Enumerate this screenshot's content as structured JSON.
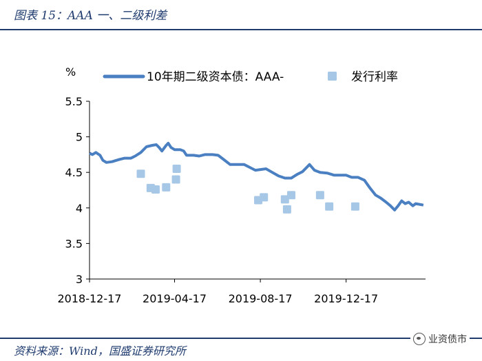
{
  "header": {
    "title": "图表 15：AAA 一、二级利差"
  },
  "footer": {
    "source": "资料来源：Wind，国盛证券研究所"
  },
  "watermark": {
    "text": "业资债市",
    "icon": "wechat-icon"
  },
  "colors": {
    "line": "#4a7fc1",
    "marker": "#a7c7e7",
    "rule": "#1f3b6e"
  },
  "chart_data": {
    "type": "line",
    "unit_label": "%",
    "ylim": [
      3,
      5.5
    ],
    "yticks": [
      "3",
      "3.5",
      "4",
      "4.5",
      "5",
      "5.5"
    ],
    "xticks": [
      "2018-12-17",
      "2019-04-17",
      "2019-08-17",
      "2019-12-17"
    ],
    "x_range": [
      "2018-12-17",
      "2020-04-08"
    ],
    "legend_position": "top",
    "grid": false,
    "series": [
      {
        "name": "10年期二级资本债：AAA-",
        "kind": "line",
        "points": [
          [
            "2018-12-17",
            4.77
          ],
          [
            "2018-12-21",
            4.75
          ],
          [
            "2018-12-26",
            4.78
          ],
          [
            "2019-01-01",
            4.74
          ],
          [
            "2019-01-05",
            4.67
          ],
          [
            "2019-01-10",
            4.64
          ],
          [
            "2019-01-18",
            4.65
          ],
          [
            "2019-01-28",
            4.68
          ],
          [
            "2019-02-05",
            4.7
          ],
          [
            "2019-02-14",
            4.7
          ],
          [
            "2019-02-20",
            4.73
          ],
          [
            "2019-02-28",
            4.78
          ],
          [
            "2019-03-08",
            4.86
          ],
          [
            "2019-03-16",
            4.88
          ],
          [
            "2019-03-22",
            4.89
          ],
          [
            "2019-03-26",
            4.85
          ],
          [
            "2019-03-30",
            4.8
          ],
          [
            "2019-04-05",
            4.88
          ],
          [
            "2019-04-08",
            4.91
          ],
          [
            "2019-04-12",
            4.85
          ],
          [
            "2019-04-17",
            4.82
          ],
          [
            "2019-04-25",
            4.82
          ],
          [
            "2019-04-30",
            4.8
          ],
          [
            "2019-05-04",
            4.74
          ],
          [
            "2019-05-14",
            4.74
          ],
          [
            "2019-05-22",
            4.73
          ],
          [
            "2019-05-30",
            4.75
          ],
          [
            "2019-06-10",
            4.75
          ],
          [
            "2019-06-18",
            4.74
          ],
          [
            "2019-06-26",
            4.68
          ],
          [
            "2019-07-05",
            4.61
          ],
          [
            "2019-07-15",
            4.61
          ],
          [
            "2019-07-25",
            4.61
          ],
          [
            "2019-08-02",
            4.57
          ],
          [
            "2019-08-10",
            4.53
          ],
          [
            "2019-08-17",
            4.54
          ],
          [
            "2019-08-25",
            4.55
          ],
          [
            "2019-09-03",
            4.5
          ],
          [
            "2019-09-12",
            4.45
          ],
          [
            "2019-09-21",
            4.42
          ],
          [
            "2019-09-30",
            4.42
          ],
          [
            "2019-10-08",
            4.47
          ],
          [
            "2019-10-16",
            4.51
          ],
          [
            "2019-10-26",
            4.61
          ],
          [
            "2019-11-02",
            4.53
          ],
          [
            "2019-11-10",
            4.5
          ],
          [
            "2019-11-20",
            4.49
          ],
          [
            "2019-11-30",
            4.46
          ],
          [
            "2019-12-17",
            4.46
          ],
          [
            "2019-12-25",
            4.43
          ],
          [
            "2020-01-03",
            4.43
          ],
          [
            "2020-01-12",
            4.39
          ],
          [
            "2020-01-20",
            4.28
          ],
          [
            "2020-01-28",
            4.18
          ],
          [
            "2020-02-04",
            4.14
          ],
          [
            "2020-02-12",
            4.08
          ],
          [
            "2020-02-18",
            4.03
          ],
          [
            "2020-02-24",
            3.97
          ],
          [
            "2020-02-29",
            4.03
          ],
          [
            "2020-03-05",
            4.1
          ],
          [
            "2020-03-10",
            4.06
          ],
          [
            "2020-03-15",
            4.08
          ],
          [
            "2020-03-21",
            4.03
          ],
          [
            "2020-03-25",
            4.06
          ],
          [
            "2020-04-05",
            4.04
          ]
        ]
      },
      {
        "name": "发行利率",
        "kind": "scatter",
        "points": [
          [
            "2019-02-28",
            4.48
          ],
          [
            "2019-03-14",
            4.28
          ],
          [
            "2019-03-21",
            4.26
          ],
          [
            "2019-04-05",
            4.29
          ],
          [
            "2019-04-19",
            4.4
          ],
          [
            "2019-04-20",
            4.55
          ],
          [
            "2019-08-14",
            4.11
          ],
          [
            "2019-08-22",
            4.15
          ],
          [
            "2019-09-21",
            4.12
          ],
          [
            "2019-09-24",
            3.98
          ],
          [
            "2019-09-30",
            4.18
          ],
          [
            "2019-11-10",
            4.18
          ],
          [
            "2019-11-23",
            4.02
          ],
          [
            "2019-12-30",
            4.02
          ]
        ]
      }
    ]
  }
}
